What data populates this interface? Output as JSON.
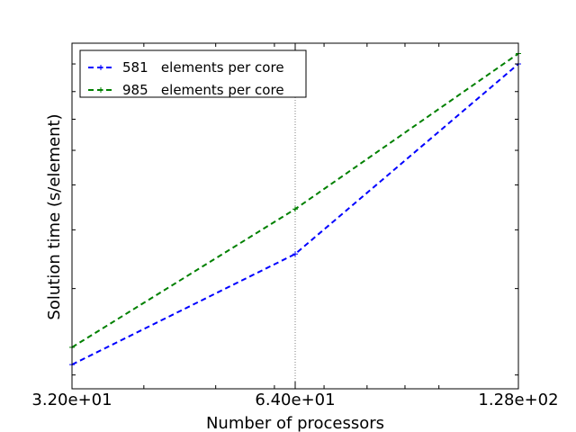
{
  "chart_data": {
    "type": "line",
    "title": "",
    "xlabel": "Number of processors",
    "ylabel": "Solution time (s/element)",
    "x_scale": "log2",
    "xlim": [
      32,
      128
    ],
    "x_ticks": [
      {
        "value": 32,
        "label": "3.20e+01"
      },
      {
        "value": 64,
        "label": "6.40e+01"
      },
      {
        "value": 128,
        "label": "1.28e+02"
      }
    ],
    "y_tick_labels_shown": false,
    "vertical_reference_line": {
      "x": 64,
      "style": "dotted",
      "color": "#7f7f7f"
    },
    "legend": {
      "placement": "top-left"
    },
    "series": [
      {
        "name": "581   elements per core",
        "color": "#0000ff",
        "line_style": "dashed",
        "marker": "+",
        "x": [
          32,
          64,
          128
        ],
        "y": [
          0.07,
          0.39,
          0.94
        ]
      },
      {
        "name": "985   elements per core",
        "color": "#008000",
        "line_style": "dashed",
        "marker": "+",
        "x": [
          32,
          64,
          128
        ],
        "y": [
          0.12,
          0.52,
          0.97
        ]
      }
    ],
    "ylim": [
      0,
      1
    ]
  }
}
